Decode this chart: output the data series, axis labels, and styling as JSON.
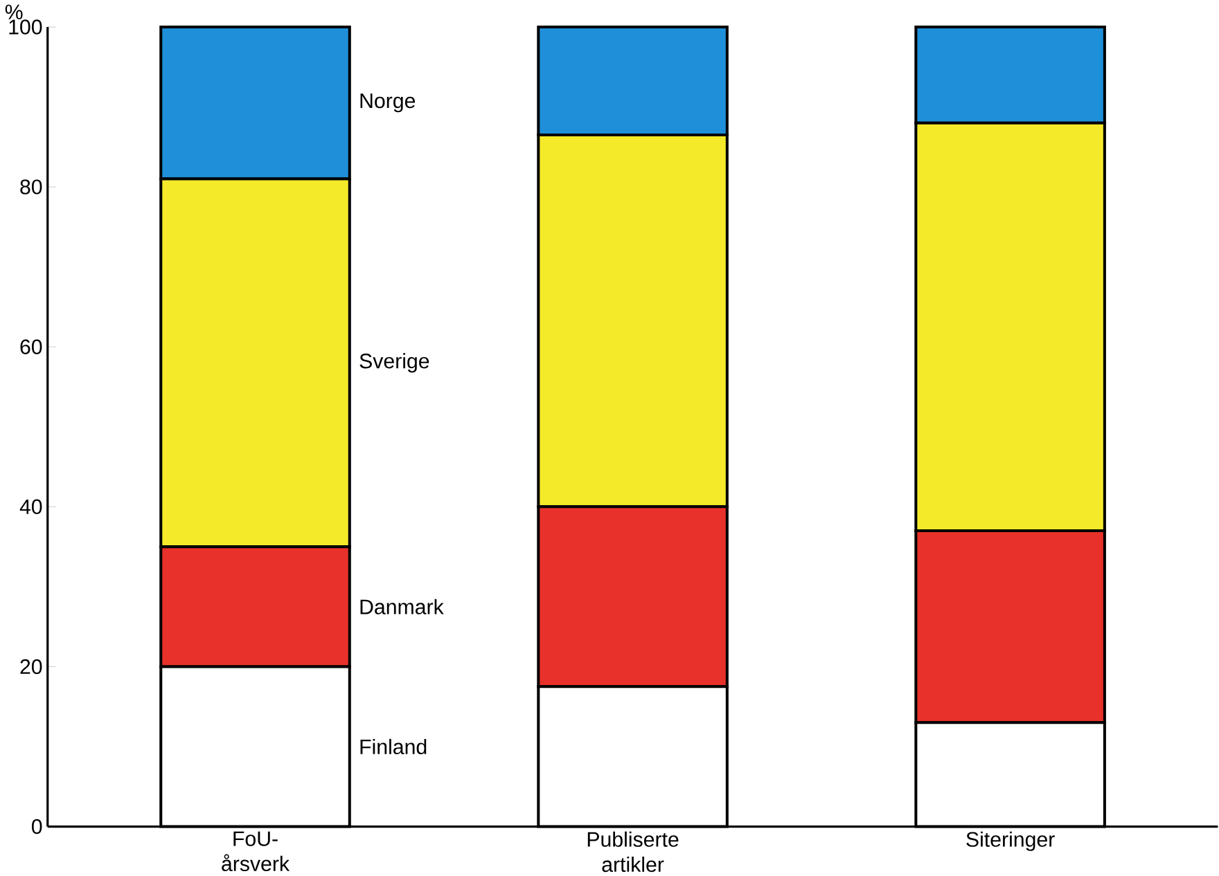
{
  "chart_data": {
    "type": "bar",
    "stacked": true,
    "ylabel": "%",
    "categories": [
      "FoU-årsverk",
      "Publiserte artikler",
      "Siteringer"
    ],
    "series": [
      {
        "name": "Finland",
        "color": "#ffffff",
        "values": [
          20,
          17.5,
          13
        ]
      },
      {
        "name": "Danmark",
        "color": "#e8312a",
        "values": [
          15,
          22.5,
          24
        ]
      },
      {
        "name": "Sverige",
        "color": "#f5ea2a",
        "values": [
          46,
          46.5,
          51
        ]
      },
      {
        "name": "Norge",
        "color": "#1e8fd8",
        "values": [
          19,
          13.5,
          12
        ]
      }
    ],
    "ylim": [
      0,
      100
    ],
    "yticks": [
      0,
      20,
      40,
      60,
      80,
      100
    ],
    "legend": false,
    "grid": false
  }
}
